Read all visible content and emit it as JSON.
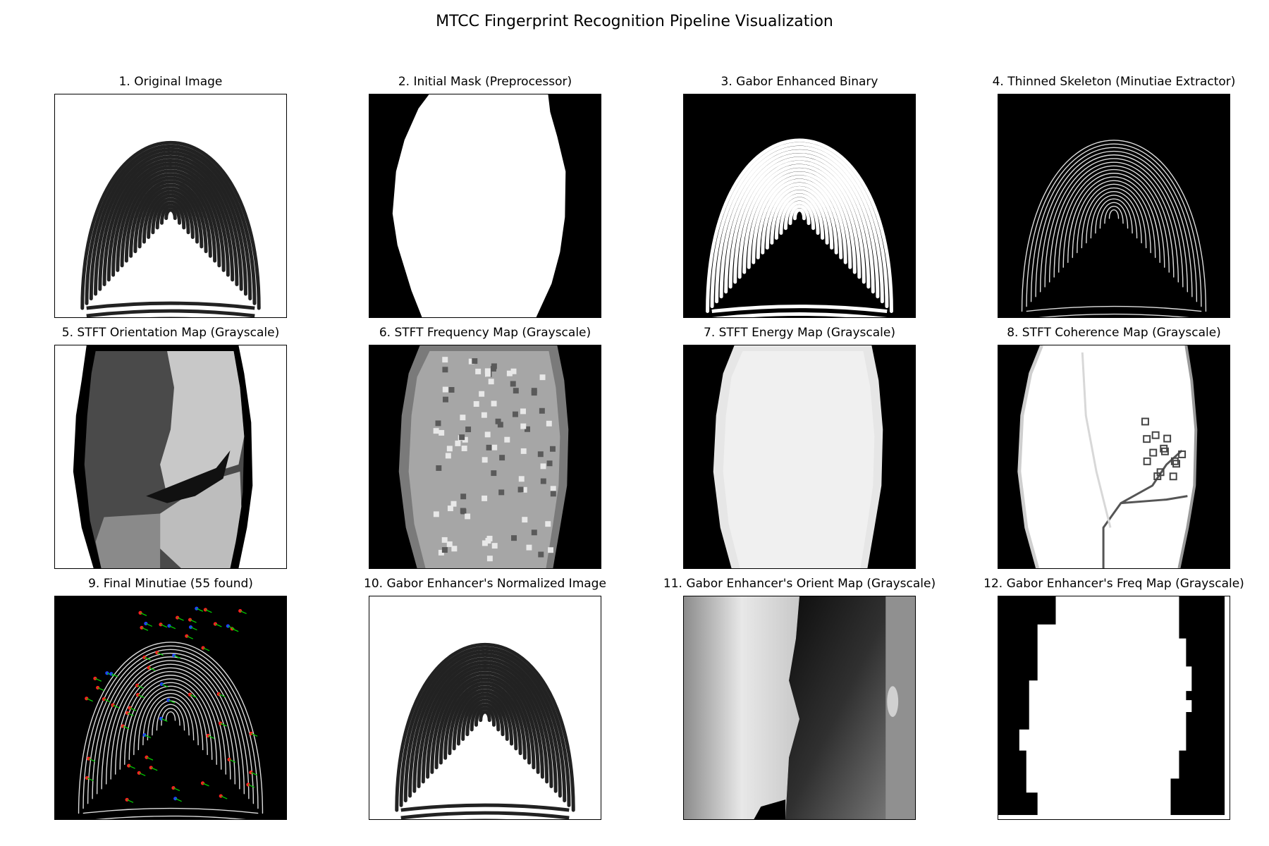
{
  "figure": {
    "title": "MTCC Fingerprint Recognition Pipeline Visualization"
  },
  "panels": [
    {
      "id": "p1",
      "title": "1. Original Image"
    },
    {
      "id": "p2",
      "title": "2. Initial Mask (Preprocessor)"
    },
    {
      "id": "p3",
      "title": "3. Gabor Enhanced Binary"
    },
    {
      "id": "p4",
      "title": "4. Thinned Skeleton (Minutiae Extractor)"
    },
    {
      "id": "p5",
      "title": "5. STFT Orientation Map (Grayscale)"
    },
    {
      "id": "p6",
      "title": "6. STFT Frequency Map (Grayscale)"
    },
    {
      "id": "p7",
      "title": "7. STFT Energy Map (Grayscale)"
    },
    {
      "id": "p8",
      "title": "8. STFT Coherence Map (Grayscale)"
    },
    {
      "id": "p9",
      "title": "9. Final Minutiae (55 found)"
    },
    {
      "id": "p10",
      "title": "10. Gabor Enhancer's Normalized Image"
    },
    {
      "id": "p11",
      "title": "11. Gabor Enhancer's Orient Map (Grayscale)"
    },
    {
      "id": "p12",
      "title": "12. Gabor Enhancer's Freq Map (Grayscale)"
    }
  ],
  "minutiae": {
    "count": 55,
    "colors": {
      "ending": "#ff2020",
      "bifurcation": "#2040ff",
      "direction": "#00cc00"
    }
  },
  "colors": {
    "background": "#ffffff",
    "frame": "#000000"
  }
}
